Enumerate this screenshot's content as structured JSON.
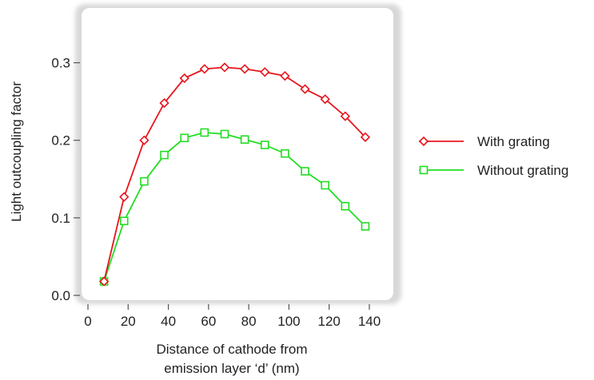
{
  "chart_data": {
    "type": "line",
    "xlabel_line1": "Distance of cathode from",
    "xlabel_line2": "emission layer ‘d’ (nm)",
    "ylabel": "Light outcoupling factor",
    "xlim": [
      0,
      140
    ],
    "ylim": [
      0,
      0.35
    ],
    "xticks": [
      0,
      20,
      40,
      60,
      80,
      100,
      120,
      140
    ],
    "yticks": [
      0.0,
      0.1,
      0.2,
      0.3
    ],
    "ytick_labels": [
      "0.0",
      "0.1",
      "0.2",
      "0.3"
    ],
    "x": [
      8,
      18,
      28,
      38,
      48,
      58,
      68,
      78,
      88,
      98,
      108,
      118,
      128,
      138
    ],
    "series": [
      {
        "name": "With grating",
        "color": "#e8141c",
        "marker": "diamond",
        "values": [
          0.018,
          0.127,
          0.2,
          0.248,
          0.28,
          0.292,
          0.294,
          0.292,
          0.288,
          0.283,
          0.266,
          0.253,
          0.231,
          0.204
        ]
      },
      {
        "name": "Without grating",
        "color": "#22dd22",
        "marker": "square",
        "values": [
          0.018,
          0.096,
          0.147,
          0.181,
          0.203,
          0.21,
          0.208,
          0.201,
          0.194,
          0.183,
          0.16,
          0.142,
          0.115,
          0.089
        ]
      }
    ],
    "grid": false,
    "legend_position": "right"
  }
}
